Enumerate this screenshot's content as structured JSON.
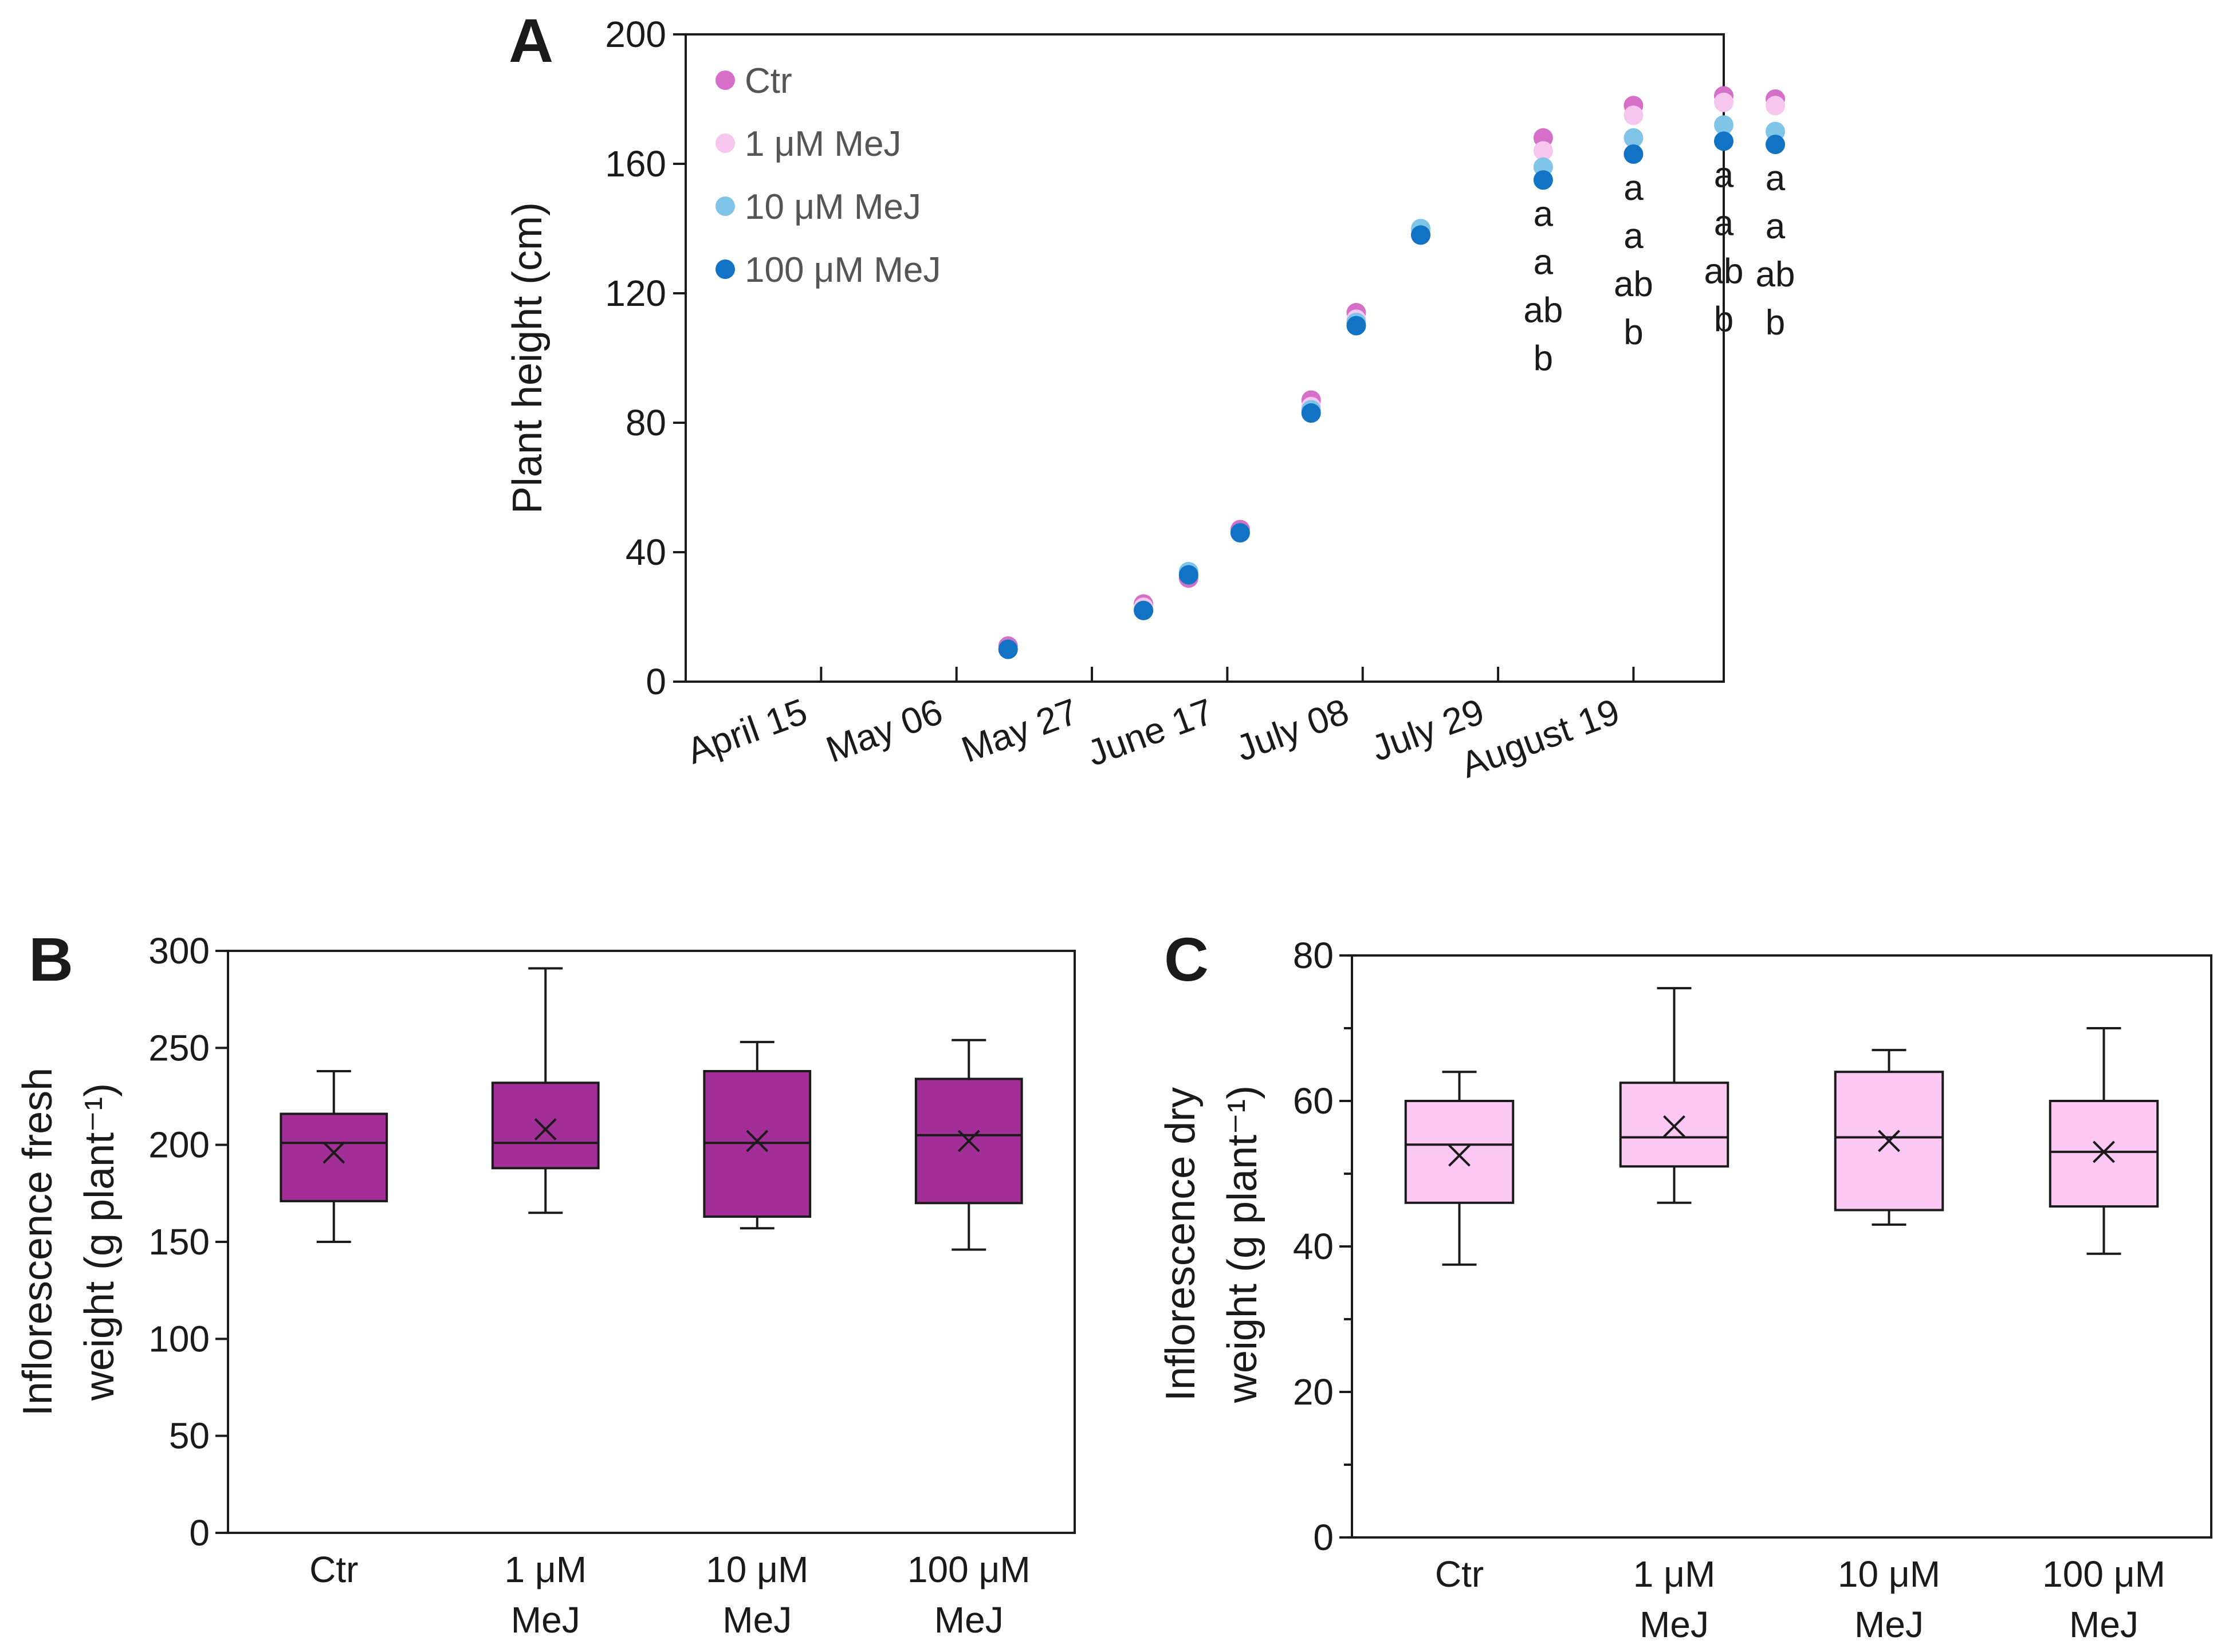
{
  "chart_data": [
    {
      "id": "A",
      "type": "scatter",
      "panel_label": "A",
      "ylabel": "Plant height (cm)",
      "ylim": [
        0,
        200
      ],
      "yticks": [
        0,
        40,
        80,
        120,
        160,
        200
      ],
      "xtick_labels": [
        "April 15",
        "May 06",
        "May 27",
        "June 17",
        "July 08",
        "July 29",
        "August 19"
      ],
      "xtick_days": [
        0,
        21,
        42,
        63,
        84,
        105,
        126
      ],
      "xlim_days": [
        -21,
        140
      ],
      "series": [
        {
          "name": "Ctr",
          "color": "#d66fc8",
          "x_days": [
            29,
            50,
            57,
            65,
            76,
            83,
            93,
            112,
            126,
            140,
            148
          ],
          "y": [
            11,
            24,
            32,
            47,
            87,
            114,
            138,
            168,
            178,
            181,
            180
          ]
        },
        {
          "name": "1 μM MeJ",
          "color": "#f6c6ee",
          "x_days": [
            29,
            50,
            57,
            65,
            76,
            83,
            93,
            112,
            126,
            140,
            148
          ],
          "y": [
            10,
            23,
            33,
            46,
            85,
            112,
            139,
            164,
            175,
            179,
            178
          ]
        },
        {
          "name": "10 μM MeJ",
          "color": "#80c4e8",
          "x_days": [
            29,
            50,
            57,
            65,
            76,
            83,
            93,
            112,
            126,
            140,
            148
          ],
          "y": [
            10,
            22,
            34,
            46,
            84,
            111,
            140,
            159,
            168,
            172,
            170
          ]
        },
        {
          "name": "100 μM MeJ",
          "color": "#1273c4",
          "x_days": [
            29,
            50,
            57,
            65,
            76,
            83,
            93,
            112,
            126,
            140,
            148
          ],
          "y": [
            10,
            22,
            33,
            46,
            83,
            110,
            138,
            155,
            163,
            167,
            166
          ]
        }
      ],
      "annotations": [
        {
          "x_day": 112,
          "letters": [
            "a",
            "a",
            "ab",
            "b"
          ]
        },
        {
          "x_day": 126,
          "letters": [
            "a",
            "a",
            "ab",
            "b"
          ]
        },
        {
          "x_day": 140,
          "letters": [
            "a",
            "a",
            "ab",
            "b"
          ]
        },
        {
          "x_day": 148,
          "letters": [
            "a",
            "a",
            "ab",
            "b"
          ]
        }
      ]
    },
    {
      "id": "B",
      "type": "box",
      "panel_label": "B",
      "ylabel": [
        "Inflorescence fresh",
        "weight (g plant⁻¹)"
      ],
      "ylim": [
        0,
        300
      ],
      "yticks": [
        0,
        50,
        100,
        150,
        200,
        250,
        300
      ],
      "box_color": "#a42e98",
      "categories": [
        [
          "Ctr"
        ],
        [
          "1 μM",
          "MeJ"
        ],
        [
          "10 μM",
          "MeJ"
        ],
        [
          "100 μM",
          "MeJ"
        ]
      ],
      "boxes": [
        {
          "min": 150,
          "q1": 171,
          "median": 201,
          "q3": 216,
          "max": 238,
          "mean": 196
        },
        {
          "min": 165,
          "q1": 188,
          "median": 201,
          "q3": 232,
          "max": 291,
          "mean": 208
        },
        {
          "min": 157,
          "q1": 163,
          "median": 201,
          "q3": 238,
          "max": 253,
          "mean": 202
        },
        {
          "min": 146,
          "q1": 170,
          "median": 205,
          "q3": 234,
          "max": 254,
          "mean": 202
        }
      ]
    },
    {
      "id": "C",
      "type": "box",
      "panel_label": "C",
      "ylabel": [
        "Inflorescence dry",
        "weight (g plant⁻¹)"
      ],
      "ylim": [
        0,
        80
      ],
      "yticks": [
        0,
        20,
        40,
        60,
        80
      ],
      "yminor": [
        10,
        30,
        50,
        70
      ],
      "box_color": "#fbc8f4",
      "categories": [
        [
          "Ctr"
        ],
        [
          "1 μM",
          "MeJ"
        ],
        [
          "10 μM",
          "MeJ"
        ],
        [
          "100 μM",
          "MeJ"
        ]
      ],
      "boxes": [
        {
          "min": 37.5,
          "q1": 46,
          "median": 54,
          "q3": 60,
          "max": 64,
          "mean": 52.5
        },
        {
          "min": 46,
          "q1": 51,
          "median": 55,
          "q3": 62.5,
          "max": 75.5,
          "mean": 56.5
        },
        {
          "min": 43,
          "q1": 45,
          "median": 55,
          "q3": 64,
          "max": 67,
          "mean": 54.5
        },
        {
          "min": 39,
          "q1": 45.5,
          "median": 53,
          "q3": 60,
          "max": 70,
          "mean": 53
        }
      ]
    }
  ]
}
